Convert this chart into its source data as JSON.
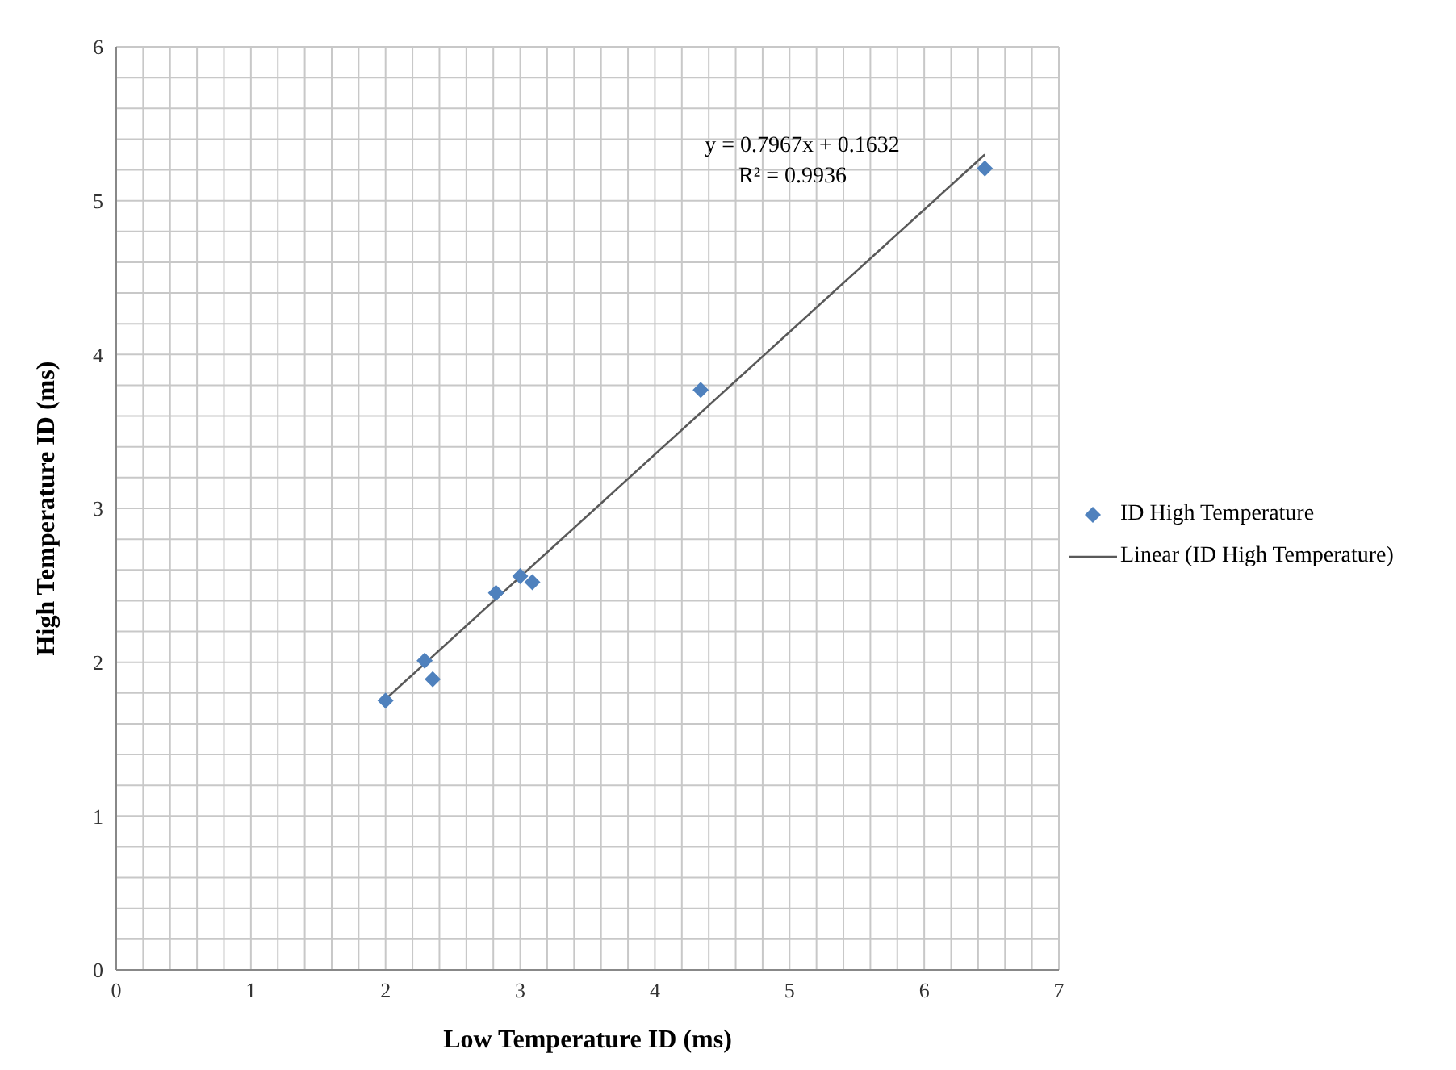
{
  "chart_data": {
    "type": "scatter",
    "xlabel": "Low Temperature ID (ms)",
    "ylabel": "High Temperature ID (ms)",
    "xlim": [
      0,
      7
    ],
    "ylim": [
      0,
      6
    ],
    "xticks": [
      0,
      {
        "value": 0.2,
        "label": null
      },
      {
        "value": 0.4,
        "label": null
      },
      {
        "value": 0.6,
        "label": null
      },
      {
        "value": 0.8,
        "label": null
      },
      1,
      {
        "value": 1.2,
        "label": null
      },
      {
        "value": 1.4,
        "label": null
      },
      {
        "value": 1.6,
        "label": null
      },
      {
        "value": 1.8,
        "label": null
      },
      2,
      {
        "value": 2.2,
        "label": null
      },
      {
        "value": 2.4,
        "label": null
      },
      {
        "value": 2.6,
        "label": null
      },
      {
        "value": 2.8,
        "label": null
      },
      3,
      {
        "value": 3.2,
        "label": null
      },
      {
        "value": 3.4,
        "label": null
      },
      {
        "value": 3.6,
        "label": null
      },
      {
        "value": 3.8,
        "label": null
      },
      4,
      {
        "value": 4.2,
        "label": null
      },
      {
        "value": 4.4,
        "label": null
      },
      {
        "value": 4.6,
        "label": null
      },
      {
        "value": 4.8,
        "label": null
      },
      5,
      {
        "value": 5.2,
        "label": null
      },
      {
        "value": 5.4,
        "label": null
      },
      {
        "value": 5.6,
        "label": null
      },
      {
        "value": 5.8,
        "label": null
      },
      6,
      {
        "value": 6.2,
        "label": null
      },
      {
        "value": 6.4,
        "label": null
      },
      {
        "value": 6.6,
        "label": null
      },
      {
        "value": 6.8,
        "label": null
      },
      7
    ],
    "yticks": [
      0,
      {
        "value": 0.2,
        "label": null
      },
      {
        "value": 0.4,
        "label": null
      },
      {
        "value": 0.6,
        "label": null
      },
      {
        "value": 0.8,
        "label": null
      },
      1,
      {
        "value": 1.2,
        "label": null
      },
      {
        "value": 1.4,
        "label": null
      },
      {
        "value": 1.6,
        "label": null
      },
      {
        "value": 1.8,
        "label": null
      },
      2,
      {
        "value": 2.2,
        "label": null
      },
      {
        "value": 2.4,
        "label": null
      },
      {
        "value": 2.6,
        "label": null
      },
      {
        "value": 2.8,
        "label": null
      },
      3,
      {
        "value": 3.2,
        "label": null
      },
      {
        "value": 3.4,
        "label": null
      },
      {
        "value": 3.6,
        "label": null
      },
      {
        "value": 3.8,
        "label": null
      },
      4,
      {
        "value": 4.2,
        "label": null
      },
      {
        "value": 4.4,
        "label": null
      },
      {
        "value": 4.6,
        "label": null
      },
      {
        "value": 4.8,
        "label": null
      },
      5,
      {
        "value": 5.2,
        "label": null
      },
      {
        "value": 5.4,
        "label": null
      },
      {
        "value": 5.6,
        "label": null
      },
      {
        "value": 5.8,
        "label": null
      },
      6
    ],
    "grid": true,
    "legend": "right",
    "marker": "diamond",
    "series": [
      {
        "name": "ID High Temperature",
        "color": "#4f81bd",
        "x": [
          2.0,
          2.29,
          2.35,
          2.82,
          3.0,
          3.09,
          4.34,
          6.45
        ],
        "values": [
          1.75,
          2.01,
          1.89,
          2.45,
          2.56,
          2.52,
          3.77,
          5.21
        ]
      },
      {
        "name": "Linear (ID High Temperature)",
        "type": "line",
        "color": "#595959",
        "marker": "none",
        "x": [
          2.0,
          6.45
        ],
        "values": [
          1.76,
          5.3
        ]
      }
    ],
    "annotations": [
      "y = 0.7967x + 0.1632",
      "R² = 0.9936"
    ]
  }
}
